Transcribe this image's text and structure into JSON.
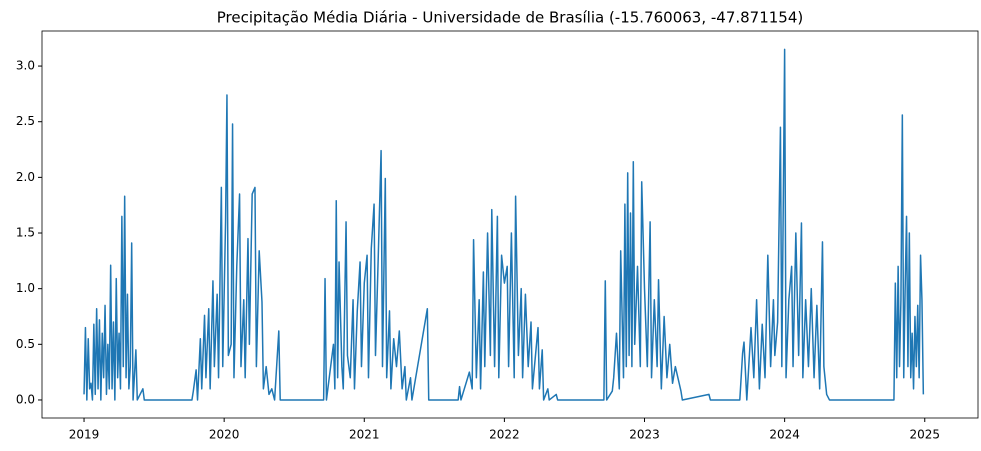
{
  "chart_data": {
    "type": "line",
    "title": "Precipitação Média Diária - Universidade de Brasília (-15.760063, -47.871154)",
    "color": "#1f77b4",
    "xlim": [
      2018.7,
      2025.38
    ],
    "xticks": [
      2019,
      2020,
      2021,
      2022,
      2023,
      2024,
      2025
    ],
    "ylim": [
      -0.162,
      3.315
    ],
    "yticks": [
      {
        "value": 0,
        "label": "0.0"
      },
      0.5,
      {
        "value": 1,
        "label": "1.0"
      },
      1.5,
      {
        "value": 2,
        "label": "2.0"
      },
      2.5,
      {
        "value": 3,
        "label": "3.0"
      }
    ],
    "x": [
      2019.0,
      2019.01,
      2019.02,
      2019.03,
      2019.04,
      2019.05,
      2019.06,
      2019.07,
      2019.08,
      2019.09,
      2019.1,
      2019.11,
      2019.12,
      2019.13,
      2019.14,
      2019.15,
      2019.16,
      2019.17,
      2019.18,
      2019.19,
      2019.2,
      2019.21,
      2019.22,
      2019.23,
      2019.24,
      2019.25,
      2019.26,
      2019.27,
      2019.28,
      2019.29,
      2019.3,
      2019.31,
      2019.32,
      2019.33,
      2019.34,
      2019.35,
      2019.37,
      2019.38,
      2019.42,
      2019.43,
      2019.77,
      2019.78,
      2019.8,
      2019.81,
      2019.83,
      2019.84,
      2019.86,
      2019.87,
      2019.89,
      2019.9,
      2019.92,
      2019.93,
      2019.95,
      2019.96,
      2019.98,
      2019.99,
      2020.01,
      2020.02,
      2020.03,
      2020.05,
      2020.06,
      2020.07,
      2020.09,
      2020.11,
      2020.12,
      2020.14,
      2020.15,
      2020.17,
      2020.18,
      2020.2,
      2020.22,
      2020.23,
      2020.25,
      2020.27,
      2020.28,
      2020.3,
      2020.32,
      2020.34,
      2020.36,
      2020.39,
      2020.4,
      2020.71,
      2020.72,
      2020.73,
      2020.78,
      2020.79,
      2020.8,
      2020.81,
      2020.82,
      2020.84,
      2020.85,
      2020.87,
      2020.88,
      2020.9,
      2020.92,
      2020.93,
      2020.95,
      2020.97,
      2020.98,
      2021.0,
      2021.02,
      2021.03,
      2021.05,
      2021.07,
      2021.08,
      2021.1,
      2021.12,
      2021.13,
      2021.15,
      2021.16,
      2021.18,
      2021.19,
      2021.21,
      2021.23,
      2021.25,
      2021.27,
      2021.29,
      2021.3,
      2021.33,
      2021.34,
      2021.45,
      2021.46,
      2021.67,
      2021.68,
      2021.69,
      2021.75,
      2021.77,
      2021.78,
      2021.8,
      2021.82,
      2021.83,
      2021.85,
      2021.86,
      2021.88,
      2021.9,
      2021.91,
      2021.93,
      2021.95,
      2021.96,
      2021.98,
      2022.0,
      2022.02,
      2022.03,
      2022.05,
      2022.07,
      2022.08,
      2022.1,
      2022.12,
      2022.13,
      2022.15,
      2022.17,
      2022.19,
      2022.2,
      2022.24,
      2022.25,
      2022.27,
      2022.28,
      2022.31,
      2022.32,
      2022.37,
      2022.38,
      2022.71,
      2022.72,
      2022.73,
      2022.77,
      2022.78,
      2022.8,
      2022.82,
      2022.83,
      2022.85,
      2022.86,
      2022.87,
      2022.88,
      2022.89,
      2022.9,
      2022.91,
      2022.92,
      2022.93,
      2022.95,
      2022.97,
      2022.98,
      2023.0,
      2023.02,
      2023.04,
      2023.05,
      2023.07,
      2023.09,
      2023.1,
      2023.12,
      2023.14,
      2023.16,
      2023.18,
      2023.2,
      2023.22,
      2023.26,
      2023.27,
      2023.46,
      2023.47,
      2023.68,
      2023.7,
      2023.71,
      2023.73,
      2023.76,
      2023.78,
      2023.8,
      2023.82,
      2023.84,
      2023.86,
      2023.88,
      2023.9,
      2023.92,
      2023.93,
      2023.95,
      2023.97,
      2023.98,
      2024.0,
      2024.01,
      2024.03,
      2024.05,
      2024.06,
      2024.08,
      2024.1,
      2024.12,
      2024.13,
      2024.15,
      2024.17,
      2024.19,
      2024.21,
      2024.23,
      2024.25,
      2024.27,
      2024.28,
      2024.3,
      2024.32,
      2024.78,
      2024.79,
      2024.8,
      2024.81,
      2024.82,
      2024.83,
      2024.84,
      2024.85,
      2024.86,
      2024.87,
      2024.88,
      2024.89,
      2024.9,
      2024.91,
      2024.92,
      2024.93,
      2024.94,
      2024.95,
      2024.96,
      2024.97,
      2024.98,
      2024.99
    ],
    "values": [
      0.05,
      0.65,
      0,
      0.55,
      0.1,
      0.15,
      0,
      0.68,
      0.05,
      0.82,
      0.1,
      0.72,
      0,
      0.6,
      0.2,
      0.85,
      0.05,
      0.5,
      0.1,
      1.21,
      0.1,
      0.7,
      0,
      1.09,
      0.2,
      0.6,
      0.1,
      1.65,
      0.3,
      1.83,
      0.2,
      0.95,
      0.1,
      0.3,
      1.41,
      0,
      0.45,
      0,
      0.1,
      0,
      0,
      0.08,
      0.27,
      0,
      0.55,
      0.1,
      0.76,
      0.2,
      0.82,
      0.1,
      1.07,
      0.3,
      0.95,
      0.2,
      1.91,
      0.3,
      1.6,
      2.74,
      0.4,
      0.5,
      2.48,
      0.2,
      1.2,
      1.85,
      0.3,
      0.9,
      0.2,
      1.45,
      0.5,
      1.85,
      1.91,
      0.3,
      1.34,
      0.88,
      0.1,
      0.3,
      0.05,
      0.1,
      0,
      0.62,
      0,
      0,
      1.09,
      0,
      0.5,
      0.1,
      1.79,
      0.2,
      1.24,
      0.3,
      0.1,
      1.6,
      0.4,
      0.2,
      0.9,
      0.1,
      0.8,
      1.24,
      0.3,
      1.05,
      1.3,
      0.2,
      1.36,
      1.76,
      0.4,
      1.3,
      2.24,
      0.3,
      1.99,
      0.2,
      0.8,
      0.1,
      0.55,
      0.3,
      0.62,
      0.1,
      0.3,
      0,
      0.2,
      0,
      0.82,
      0,
      0,
      0.12,
      0,
      0.25,
      0.1,
      1.44,
      0.2,
      0.9,
      0.1,
      1.15,
      0.3,
      1.5,
      0.4,
      1.71,
      0.3,
      1.65,
      0.2,
      1.3,
      1.05,
      1.2,
      0.3,
      1.5,
      0.2,
      1.83,
      0.4,
      1.0,
      0.2,
      0.95,
      0.3,
      0.7,
      0.1,
      0.65,
      0.1,
      0.45,
      0,
      0.1,
      0,
      0.05,
      0,
      0,
      1.07,
      0,
      0.08,
      0.2,
      0.6,
      0.1,
      1.34,
      0.2,
      1.76,
      0.3,
      2.04,
      0.4,
      1.68,
      0.3,
      2.14,
      0.5,
      1.2,
      0.3,
      1.96,
      1.0,
      0.3,
      1.6,
      0.2,
      0.9,
      0.3,
      1.08,
      0.1,
      0.75,
      0.2,
      0.5,
      0.15,
      0.3,
      0.08,
      0,
      0.05,
      0,
      0,
      0.42,
      0.52,
      0,
      0.65,
      0.2,
      0.9,
      0.1,
      0.68,
      0.2,
      1.3,
      0.3,
      0.9,
      0.4,
      0.7,
      2.45,
      0.3,
      3.15,
      0.2,
      0.9,
      1.2,
      0.3,
      1.5,
      0.4,
      1.59,
      0.2,
      0.9,
      0.3,
      1.0,
      0.2,
      0.85,
      0.1,
      1.42,
      0.3,
      0.05,
      0,
      0,
      1.05,
      0.2,
      1.2,
      0.3,
      0.9,
      2.56,
      0.2,
      1.0,
      1.65,
      0.3,
      1.5,
      0.2,
      0.6,
      0.1,
      0.75,
      0.3,
      0.85,
      0.2,
      1.3,
      0.9,
      0.05
    ]
  }
}
